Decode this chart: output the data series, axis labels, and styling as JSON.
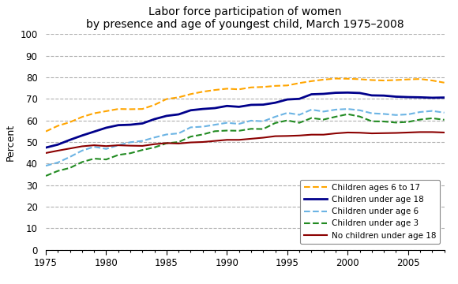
{
  "title": "Labor force participation of women\nby presence and age of youngest child, March 1975–2008",
  "ylabel": "Percent",
  "xlim": [
    1975,
    2008
  ],
  "ylim": [
    0,
    100
  ],
  "xticks": [
    1975,
    1980,
    1985,
    1990,
    1995,
    2000,
    2005
  ],
  "yticks": [
    0,
    10,
    20,
    30,
    40,
    50,
    60,
    70,
    80,
    90,
    100
  ],
  "series": [
    {
      "label": "Children ages 6 to 17",
      "color": "#FFA500",
      "linestyle": "--",
      "linewidth": 1.5,
      "years": [
        1975,
        1976,
        1977,
        1978,
        1979,
        1980,
        1981,
        1982,
        1983,
        1984,
        1985,
        1986,
        1987,
        1988,
        1989,
        1990,
        1991,
        1992,
        1993,
        1994,
        1995,
        1996,
        1997,
        1998,
        1999,
        2000,
        2001,
        2002,
        2003,
        2004,
        2005,
        2006,
        2007,
        2008
      ],
      "values": [
        54.9,
        57.5,
        59.2,
        61.6,
        63.3,
        64.3,
        65.3,
        65.2,
        65.3,
        67.2,
        69.9,
        70.7,
        72.2,
        73.3,
        74.1,
        74.7,
        74.4,
        75.3,
        75.5,
        76.0,
        76.2,
        77.3,
        78.2,
        78.9,
        79.4,
        79.3,
        79.1,
        78.7,
        78.5,
        78.7,
        79.0,
        79.2,
        78.5,
        77.5
      ]
    },
    {
      "label": "Children under age 18",
      "color": "#00008B",
      "linestyle": "-",
      "linewidth": 2.0,
      "years": [
        1975,
        1976,
        1977,
        1978,
        1979,
        1980,
        1981,
        1982,
        1983,
        1984,
        1985,
        1986,
        1987,
        1988,
        1989,
        1990,
        1991,
        1992,
        1993,
        1994,
        1995,
        1996,
        1997,
        1998,
        1999,
        2000,
        2001,
        2002,
        2003,
        2004,
        2005,
        2006,
        2007,
        2008
      ],
      "values": [
        47.4,
        48.8,
        51.0,
        53.0,
        54.8,
        56.6,
        57.8,
        58.0,
        58.6,
        60.6,
        62.1,
        62.8,
        64.7,
        65.3,
        65.7,
        66.7,
        66.3,
        67.2,
        67.3,
        68.2,
        69.7,
        70.0,
        72.1,
        72.3,
        72.8,
        72.9,
        72.7,
        71.6,
        71.5,
        71.0,
        70.8,
        70.7,
        70.5,
        70.6
      ]
    },
    {
      "label": "Children under age 6",
      "color": "#6CB4E4",
      "linestyle": "--",
      "linewidth": 1.5,
      "years": [
        1975,
        1976,
        1977,
        1978,
        1979,
        1980,
        1981,
        1982,
        1983,
        1984,
        1985,
        1986,
        1987,
        1988,
        1989,
        1990,
        1991,
        1992,
        1993,
        1994,
        1995,
        1996,
        1997,
        1998,
        1999,
        2000,
        2001,
        2002,
        2003,
        2004,
        2005,
        2006,
        2007,
        2008
      ],
      "values": [
        39.0,
        40.5,
        43.1,
        46.0,
        47.8,
        46.8,
        48.5,
        49.9,
        50.5,
        52.1,
        53.5,
        54.0,
        56.8,
        57.1,
        58.0,
        58.9,
        58.4,
        59.9,
        59.6,
        61.7,
        63.5,
        62.6,
        65.0,
        64.1,
        65.0,
        65.3,
        64.7,
        63.3,
        63.0,
        62.5,
        62.8,
        63.9,
        64.4,
        63.6
      ]
    },
    {
      "label": "Children under age 3",
      "color": "#228B22",
      "linestyle": "--",
      "linewidth": 1.5,
      "years": [
        1975,
        1976,
        1977,
        1978,
        1979,
        1980,
        1981,
        1982,
        1983,
        1984,
        1985,
        1986,
        1987,
        1988,
        1989,
        1990,
        1991,
        1992,
        1993,
        1994,
        1995,
        1996,
        1997,
        1998,
        1999,
        2000,
        2001,
        2002,
        2003,
        2004,
        2005,
        2006,
        2007,
        2008
      ],
      "values": [
        34.3,
        36.6,
        38.0,
        40.7,
        42.3,
        41.9,
        44.0,
        44.8,
        46.3,
        47.5,
        49.4,
        50.0,
        52.5,
        53.5,
        55.0,
        55.3,
        55.2,
        56.1,
        56.0,
        58.8,
        60.0,
        58.9,
        61.1,
        60.4,
        61.7,
        62.9,
        61.8,
        59.6,
        59.5,
        59.0,
        59.3,
        60.4,
        61.0,
        60.3
      ]
    },
    {
      "label": "No children under age 18",
      "color": "#8B0000",
      "linestyle": "-",
      "linewidth": 1.5,
      "years": [
        1975,
        1976,
        1977,
        1978,
        1979,
        1980,
        1981,
        1982,
        1983,
        1984,
        1985,
        1986,
        1987,
        1988,
        1989,
        1990,
        1991,
        1992,
        1993,
        1994,
        1995,
        1996,
        1997,
        1998,
        1999,
        2000,
        2001,
        2002,
        2003,
        2004,
        2005,
        2006,
        2007,
        2008
      ],
      "values": [
        44.9,
        46.0,
        47.0,
        48.0,
        48.5,
        48.1,
        48.5,
        48.3,
        48.2,
        49.0,
        49.5,
        49.3,
        49.8,
        50.0,
        50.5,
        51.0,
        51.0,
        51.5,
        52.0,
        52.7,
        52.8,
        53.0,
        53.4,
        53.4,
        54.0,
        54.4,
        54.3,
        54.0,
        54.1,
        54.2,
        54.4,
        54.6,
        54.6,
        54.4
      ]
    }
  ],
  "background_color": "#ffffff",
  "grid_color": "#b0b0b0"
}
